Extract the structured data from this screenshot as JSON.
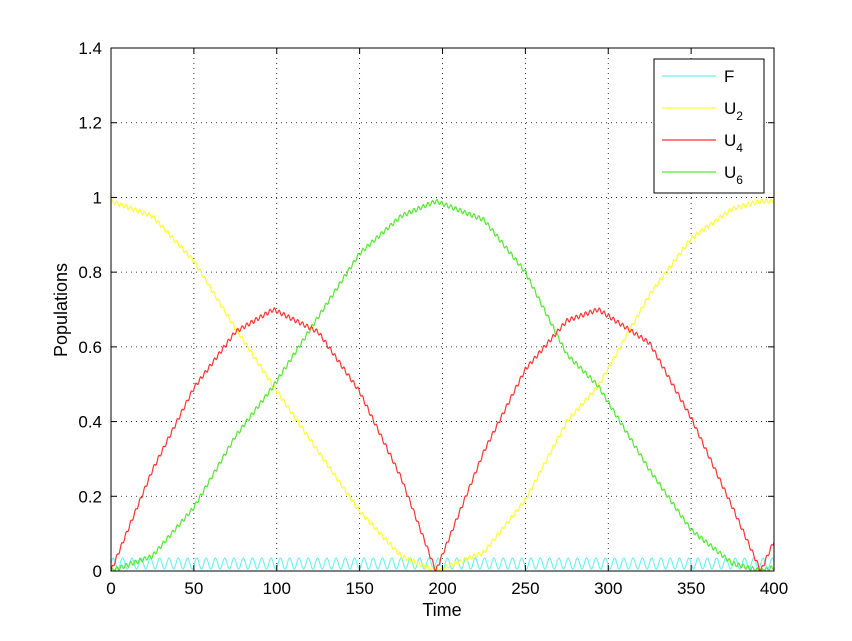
{
  "chart_data": {
    "type": "line",
    "title": "",
    "xlabel": "Time",
    "ylabel": "Populations",
    "xlim": [
      0,
      400
    ],
    "ylim": [
      0,
      1.4
    ],
    "xticks": [
      "0",
      "50",
      "100",
      "150",
      "200",
      "250",
      "300",
      "350",
      "400"
    ],
    "yticks": [
      "0",
      "0.2",
      "0.4",
      "0.6",
      "0.8",
      "1",
      "1.2",
      "1.4"
    ],
    "grid": true,
    "legend_position": "top-right",
    "period": 196,
    "series": [
      {
        "name": "F",
        "name_main": "F",
        "name_sub": "",
        "color": "#66f2f2",
        "x": [
          0,
          20,
          40,
          60,
          80,
          100,
          120,
          140,
          160,
          180,
          200,
          220,
          240,
          260,
          280,
          300,
          320,
          340,
          360,
          380,
          400
        ],
        "y": [
          0.02,
          0.02,
          0.02,
          0.02,
          0.02,
          0.02,
          0.02,
          0.02,
          0.02,
          0.02,
          0.02,
          0.02,
          0.02,
          0.02,
          0.02,
          0.02,
          0.02,
          0.02,
          0.02,
          0.02,
          0.02
        ],
        "oscillation": 0.015
      },
      {
        "name": "U2",
        "name_main": "U",
        "name_sub": "2",
        "color": "#ffff33",
        "x": [
          0,
          25,
          50,
          75,
          98,
          125,
          150,
          175,
          196,
          225,
          250,
          275,
          294,
          325,
          350,
          375,
          392,
          400
        ],
        "y": [
          0.99,
          0.95,
          0.83,
          0.65,
          0.495,
          0.32,
          0.16,
          0.04,
          0.0,
          0.05,
          0.19,
          0.4,
          0.495,
          0.74,
          0.89,
          0.97,
          0.99,
          0.99
        ],
        "oscillation": 0.006
      },
      {
        "name": "U4",
        "name_main": "U",
        "name_sub": "4",
        "color": "#ff3333",
        "x": [
          0,
          25,
          50,
          75,
          98,
          125,
          150,
          175,
          196,
          225,
          250,
          275,
          294,
          325,
          350,
          375,
          392,
          400
        ],
        "y": [
          0.0,
          0.27,
          0.49,
          0.64,
          0.7,
          0.64,
          0.48,
          0.25,
          0.0,
          0.32,
          0.54,
          0.67,
          0.7,
          0.61,
          0.41,
          0.17,
          0.0,
          0.08
        ],
        "oscillation": 0.006
      },
      {
        "name": "U6",
        "name_main": "U",
        "name_sub": "6",
        "color": "#55e633",
        "x": [
          0,
          25,
          50,
          75,
          98,
          125,
          150,
          175,
          196,
          225,
          250,
          275,
          294,
          325,
          350,
          375,
          392,
          400
        ],
        "y": [
          0.0,
          0.04,
          0.17,
          0.36,
          0.495,
          0.68,
          0.85,
          0.95,
          0.99,
          0.94,
          0.8,
          0.58,
          0.495,
          0.27,
          0.11,
          0.02,
          0.0,
          0.01
        ],
        "oscillation": 0.006
      }
    ]
  }
}
